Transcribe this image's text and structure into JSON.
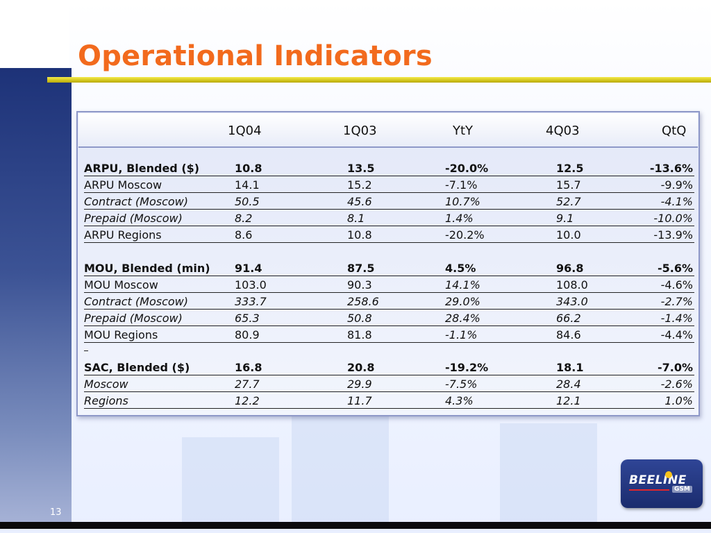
{
  "slide": {
    "title": "Operational Indicators",
    "page_number": "13"
  },
  "table": {
    "columns": [
      "1Q04",
      "1Q03",
      "YtY",
      "4Q03",
      "QtQ"
    ],
    "rows": [
      {
        "label": "ARPU, Blended ($)",
        "values": [
          "10.8",
          "13.5",
          "-20.0%",
          "12.5",
          "-13.6%"
        ],
        "style": "bold"
      },
      {
        "label": "ARPU Moscow",
        "values": [
          "14.1",
          "15.2",
          "-7.1%",
          "15.7",
          "-9.9%"
        ],
        "style": "normal"
      },
      {
        "label": " Contract (Moscow)",
        "values": [
          "50.5",
          "45.6",
          "10.7%",
          "52.7",
          "-4.1%"
        ],
        "style": "italic"
      },
      {
        "label": " Prepaid (Moscow)",
        "values": [
          "8.2",
          "8.1",
          "1.4%",
          "9.1",
          "-10.0%"
        ],
        "style": "italic"
      },
      {
        "label": "ARPU Regions",
        "values": [
          "8.6",
          "10.8",
          "-20.2%",
          "10.0",
          "-13.9%"
        ],
        "style": "normal"
      },
      {
        "label": "MOU, Blended (min)",
        "values": [
          "91.4",
          "87.5",
          "4.5%",
          "96.8",
          "-5.6%"
        ],
        "style": "bold"
      },
      {
        "label": "MOU Moscow",
        "values": [
          "103.0",
          "90.3",
          "14.1%",
          "108.0",
          "-4.6%"
        ],
        "style": "normal"
      },
      {
        "label": " Contract (Moscow)",
        "values": [
          "333.7",
          "258.6",
          "29.0%",
          "343.0",
          "-2.7%"
        ],
        "style": "italic"
      },
      {
        "label": " Prepaid (Moscow)",
        "values": [
          "65.3",
          "50.8",
          "28.4%",
          "66.2",
          "-1.4%"
        ],
        "style": "italic"
      },
      {
        "label": "MOU Regions",
        "values": [
          "80.9",
          "81.8",
          "-1.1%",
          "84.6",
          "-4.4%"
        ],
        "style": "normal"
      },
      {
        "label": "SAC, Blended ($)",
        "values": [
          "16.8",
          "20.8",
          "-19.2%",
          "18.1",
          "-7.0%"
        ],
        "style": "bold"
      },
      {
        "label": " Moscow",
        "values": [
          "27.7",
          "29.9",
          "-7.5%",
          "28.4",
          "-2.6%"
        ],
        "style": "italic"
      },
      {
        "label": " Regions",
        "values": [
          "12.2",
          "11.7",
          "4.3%",
          "12.1",
          "1.0%"
        ],
        "style": "italic"
      }
    ]
  },
  "logo": {
    "text": "BEELINE",
    "sub": "GSM"
  },
  "colors": {
    "title": "#f26a1d",
    "accent_rule": "#d2c51d",
    "side_panel": "#1d3278",
    "table_border": "#8e98c8"
  }
}
